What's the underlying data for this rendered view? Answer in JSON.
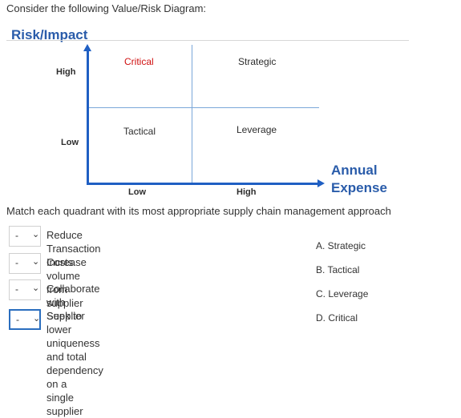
{
  "question": "Consider the following Value/Risk Diagram:",
  "diagram": {
    "title": "Risk/Impact",
    "y_labels": {
      "high": "High",
      "low": "Low"
    },
    "x_labels": {
      "low": "Low",
      "high": "High"
    },
    "x_axis_title_line1": "Annual",
    "x_axis_title_line2": "Expense",
    "quadrants": {
      "top_left": "Critical",
      "top_right": "Strategic",
      "bottom_left": "Tactical",
      "bottom_right": "Leverage"
    },
    "colors": {
      "axis": "#1f5fc3",
      "title": "#2a5caa",
      "critical": "#d01010"
    }
  },
  "instruction": "Match each quadrant with its most appropriate supply chain management approach",
  "matches": [
    {
      "selected": "-",
      "chevron": "⌄",
      "statement": "Reduce Transaction Costs",
      "statement2": ""
    },
    {
      "selected": "-",
      "chevron": "⌄",
      "statement": "Increase volume from supplier",
      "statement2": ""
    },
    {
      "selected": "-",
      "chevron": "⌄",
      "statement": "Collaborate with Supplier",
      "statement2": ""
    },
    {
      "selected": "-",
      "chevron": "⌄",
      "statement": "Seek to lower uniqueness and total dependency on a",
      "statement2": "single supplier"
    }
  ],
  "options": [
    "A. Strategic",
    "B. Tactical",
    "C. Leverage",
    "D. Critical"
  ]
}
